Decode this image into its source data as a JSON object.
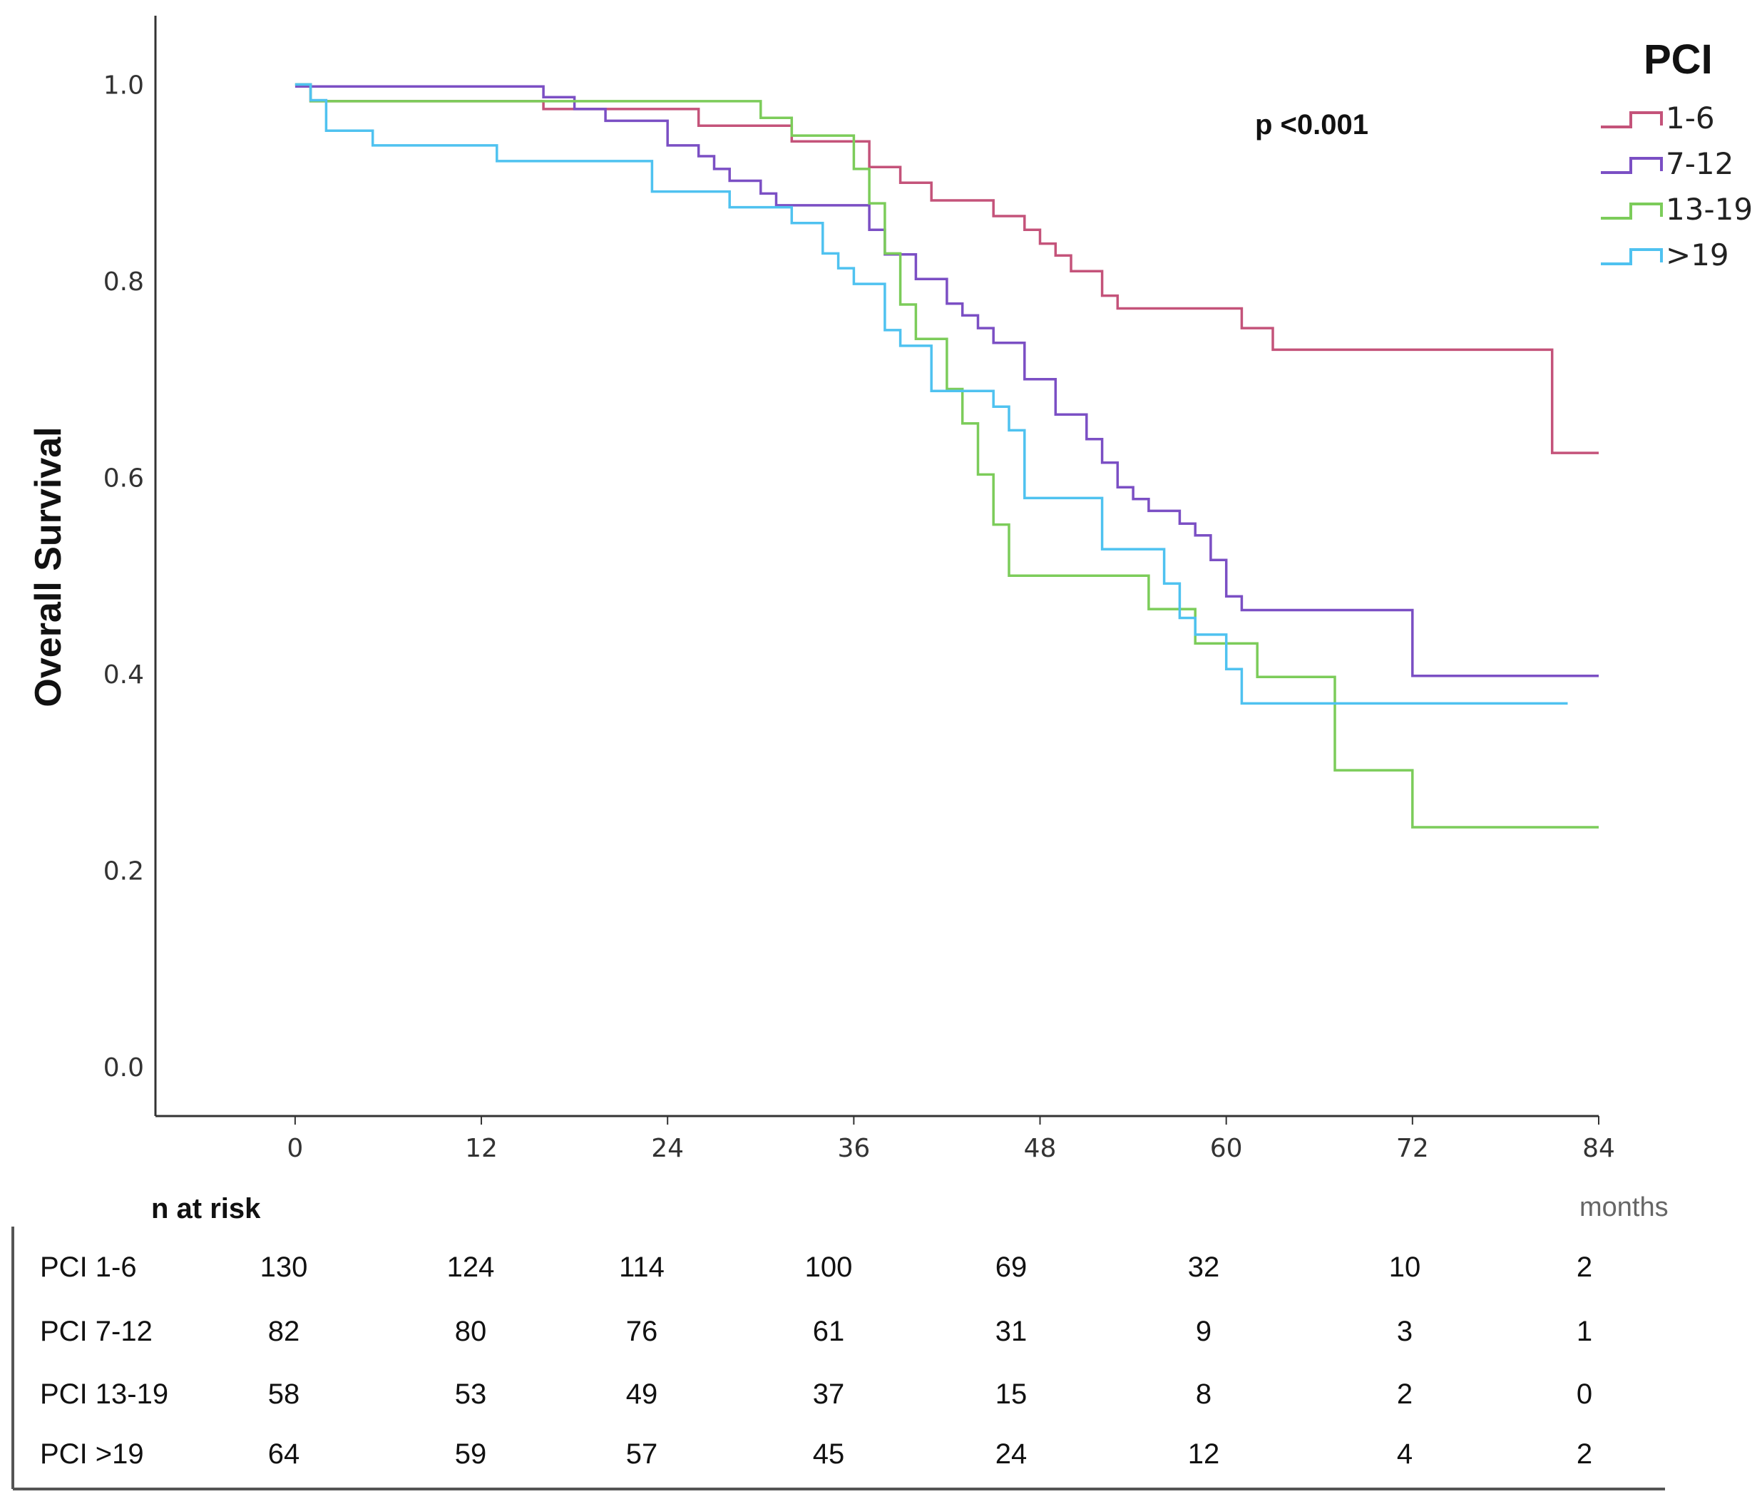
{
  "chart_data": {
    "type": "line",
    "subtype": "kaplan-meier",
    "title": "",
    "xlabel": "months",
    "ylabel": "Overall Survival",
    "xlim": [
      -9,
      84
    ],
    "ylim": [
      -0.05,
      1.07
    ],
    "xticks": [
      0,
      12,
      24,
      36,
      48,
      60,
      72,
      84
    ],
    "yticks": [
      0.0,
      0.2,
      0.4,
      0.6,
      0.8,
      1.0
    ],
    "ytick_labels": [
      "0.0",
      "0.2",
      "0.4",
      "0.6",
      "0.8",
      "1.0"
    ],
    "grid": false,
    "legend_title": "PCI",
    "legend_position": "top-right",
    "annotation": "p <0.001",
    "series": [
      {
        "name": "1-6",
        "color": "#c4537a",
        "x": [
          0,
          1,
          16,
          26,
          32,
          37,
          39,
          41,
          45,
          47,
          48,
          49,
          50,
          52,
          53,
          61,
          63,
          81,
          84
        ],
        "y": [
          1.0,
          0.983,
          0.975,
          0.958,
          0.942,
          0.916,
          0.9,
          0.882,
          0.866,
          0.852,
          0.838,
          0.826,
          0.81,
          0.785,
          0.772,
          0.752,
          0.73,
          0.625,
          0.625
        ]
      },
      {
        "name": "7-12",
        "color": "#7b4fc4",
        "x": [
          0,
          16,
          18,
          20,
          24,
          26,
          27,
          28,
          30,
          31,
          37,
          38,
          40,
          42,
          43,
          44,
          45,
          47,
          49,
          51,
          52,
          53,
          54,
          55,
          57,
          58,
          59,
          60,
          61,
          72,
          84
        ],
        "y": [
          0.998,
          0.987,
          0.975,
          0.963,
          0.938,
          0.927,
          0.914,
          0.902,
          0.889,
          0.877,
          0.852,
          0.827,
          0.802,
          0.777,
          0.765,
          0.752,
          0.737,
          0.7,
          0.664,
          0.639,
          0.615,
          0.59,
          0.578,
          0.566,
          0.553,
          0.541,
          0.516,
          0.479,
          0.465,
          0.398,
          0.398
        ]
      },
      {
        "name": "13-19",
        "color": "#7ccc5a",
        "x": [
          0,
          1,
          30,
          32,
          36,
          37,
          38,
          39,
          40,
          42,
          43,
          44,
          45,
          46,
          55,
          58,
          62,
          67,
          72,
          84
        ],
        "y": [
          1.0,
          0.983,
          0.966,
          0.948,
          0.914,
          0.879,
          0.828,
          0.776,
          0.741,
          0.69,
          0.655,
          0.603,
          0.552,
          0.5,
          0.466,
          0.431,
          0.397,
          0.302,
          0.244,
          0.244
        ]
      },
      {
        "name": ">19",
        "color": "#4fc2f0",
        "x": [
          0,
          1,
          2,
          5,
          13,
          23,
          28,
          32,
          34,
          35,
          36,
          38,
          39,
          41,
          45,
          46,
          47,
          52,
          56,
          57,
          58,
          60,
          61,
          82
        ],
        "y": [
          1.0,
          0.984,
          0.953,
          0.938,
          0.922,
          0.891,
          0.875,
          0.859,
          0.828,
          0.813,
          0.797,
          0.75,
          0.734,
          0.688,
          0.672,
          0.648,
          0.579,
          0.527,
          0.492,
          0.457,
          0.44,
          0.405,
          0.37,
          0.37
        ]
      }
    ],
    "risk_table": {
      "header": "n at risk",
      "unit": "months",
      "rows": [
        {
          "label": "PCI 1-6",
          "values": [
            "130",
            "124",
            "114",
            "100",
            "69",
            "32",
            "10",
            "2"
          ]
        },
        {
          "label": "PCI 7-12",
          "values": [
            "82",
            "80",
            "76",
            "61",
            "31",
            "9",
            "3",
            "1"
          ]
        },
        {
          "label": "PCI 13-19",
          "values": [
            "58",
            "53",
            "49",
            "37",
            "15",
            "8",
            "2",
            "0"
          ]
        },
        {
          "label": "PCI >19",
          "values": [
            "64",
            "59",
            "57",
            "45",
            "24",
            "12",
            "4",
            "2"
          ]
        }
      ]
    }
  }
}
